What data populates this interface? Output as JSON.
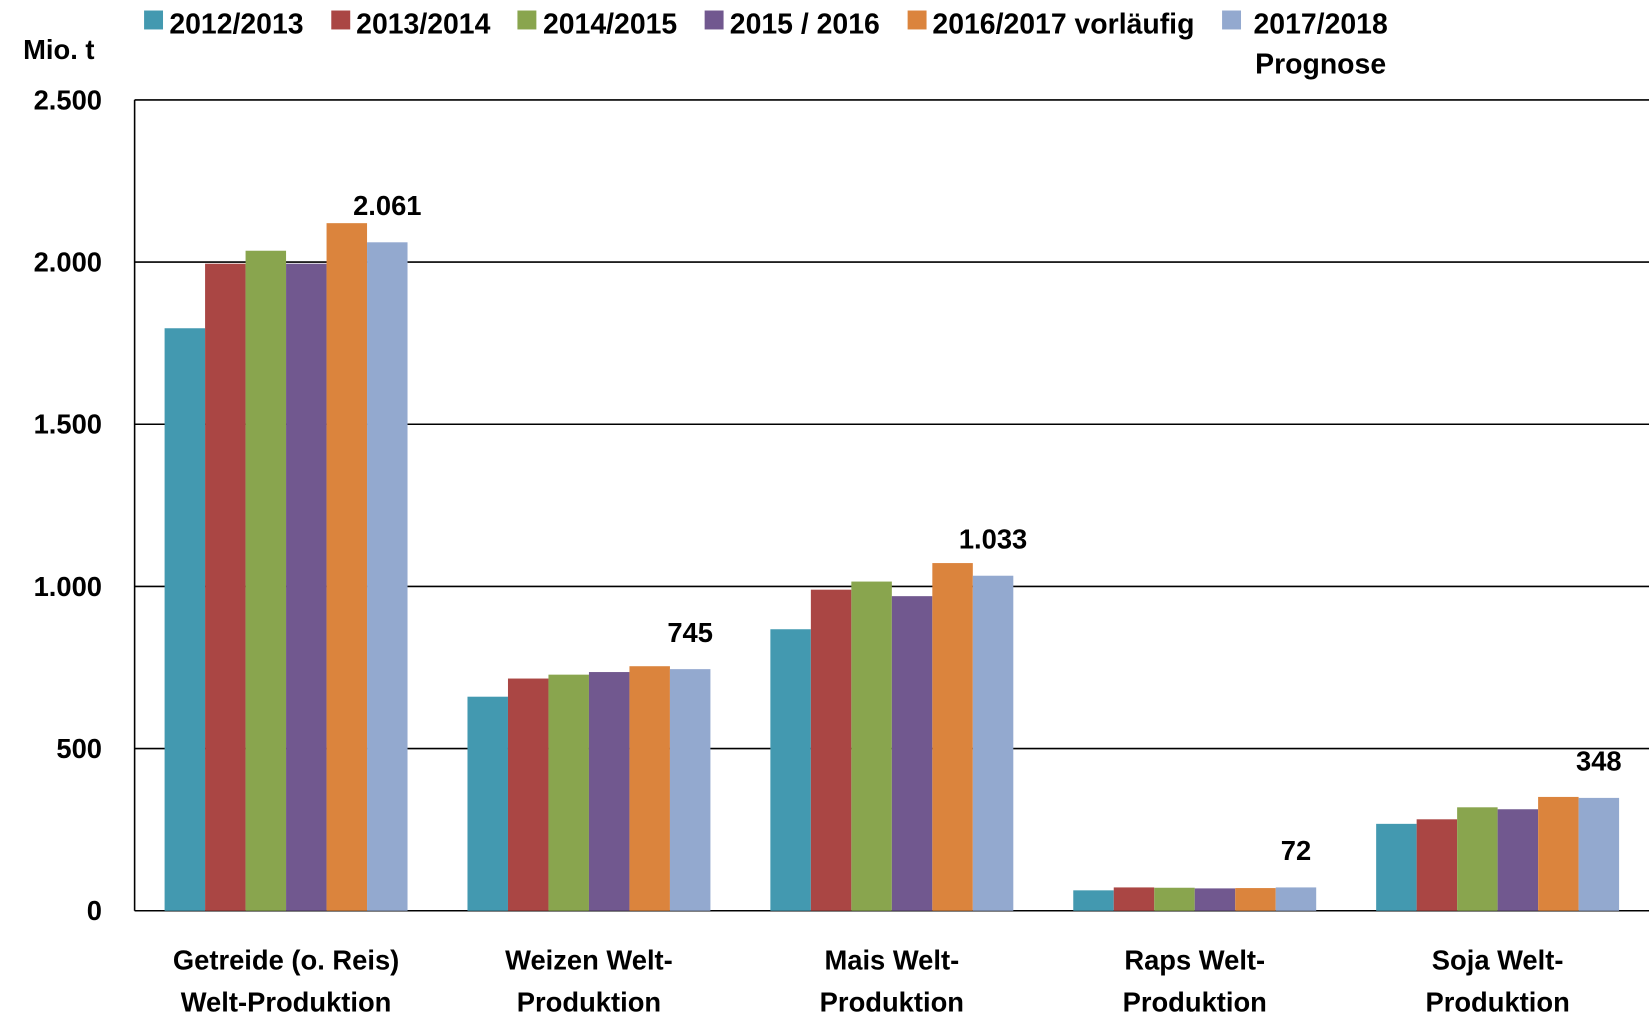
{
  "chart_data": {
    "type": "bar",
    "y_label": "Mio. t",
    "categories": [
      [
        "Getreide (o. Reis)",
        "Welt-Produktion"
      ],
      [
        "Weizen Welt-",
        "Produktion"
      ],
      [
        "Mais Welt-",
        "Produktion"
      ],
      [
        "Raps Welt-",
        "Produktion"
      ],
      [
        "Soja Welt-",
        "Produktion"
      ]
    ],
    "series": [
      {
        "name": "2012/2013",
        "color": "#4399b0",
        "values": [
          1796,
          660,
          868,
          63,
          268
        ]
      },
      {
        "name": "2013/2014",
        "color": "#aa4644",
        "values": [
          1995,
          716,
          990,
          72,
          282
        ]
      },
      {
        "name": "2014/2015",
        "color": "#89a54e",
        "values": [
          2035,
          728,
          1015,
          71,
          319
        ]
      },
      {
        "name": "2015 / 2016",
        "color": "#71588f",
        "values": [
          1995,
          736,
          970,
          69,
          313
        ]
      },
      {
        "name": "2016/2017 vorläufig",
        "color": "#db843d",
        "values": [
          2120,
          754,
          1072,
          70,
          351
        ]
      },
      {
        "name": "2017/2018 Prognose",
        "color": "#93a9cf",
        "values": [
          2061,
          745,
          1033,
          72,
          348
        ],
        "value_labels": [
          "2.061",
          "745",
          "1.033",
          "72",
          "348"
        ]
      }
    ],
    "ylim": [
      0,
      2500
    ],
    "yticks": [
      0,
      500,
      {
        "value": 1000,
        "label": "1.000"
      },
      {
        "value": 1500,
        "label": "1.500"
      },
      {
        "value": 2000,
        "label": "2.000"
      },
      {
        "value": 2500,
        "label": "2.500"
      }
    ],
    "grid": true
  }
}
